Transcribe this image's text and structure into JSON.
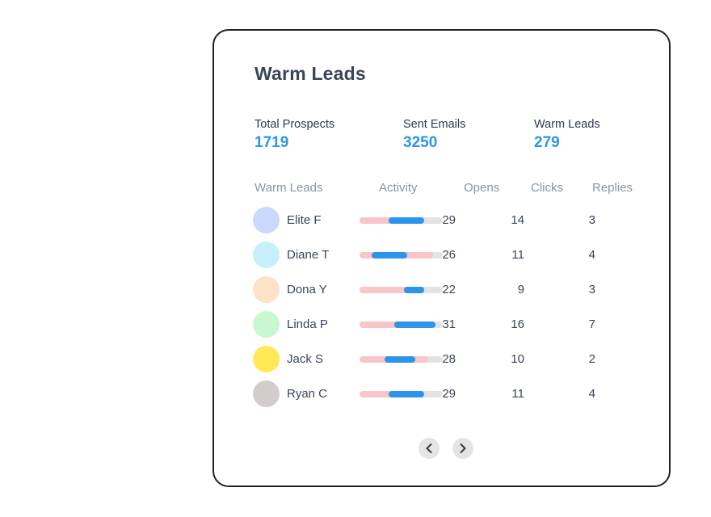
{
  "title": "Warm Leads",
  "stats": [
    {
      "label": "Total Prospects",
      "value": "1719"
    },
    {
      "label": "Sent Emails",
      "value": "3250"
    },
    {
      "label": "Warm Leads",
      "value": "279"
    }
  ],
  "table": {
    "headers": [
      "Warm Leads",
      "Activity",
      "Opens",
      "Clicks",
      "Replies"
    ],
    "rows": [
      {
        "name": "Elite F",
        "avatar_color": "#c9d8fb",
        "activity_pink": 0.75,
        "activity_blue": [
          0.35,
          0.78
        ],
        "opens": "29",
        "clicks": "14",
        "replies": "3"
      },
      {
        "name": "Diane T",
        "avatar_color": "#c8f0fb",
        "activity_pink": 0.88,
        "activity_blue": [
          0.15,
          0.57
        ],
        "opens": "26",
        "clicks": "11",
        "replies": "4"
      },
      {
        "name": "Dona Y",
        "avatar_color": "#fde2c8",
        "activity_pink": 0.78,
        "activity_blue": [
          0.53,
          0.78
        ],
        "opens": "22",
        "clicks": "9",
        "replies": "3"
      },
      {
        "name": "Linda P",
        "avatar_color": "#c9f7cf",
        "activity_pink": 0.88,
        "activity_blue": [
          0.42,
          0.91
        ],
        "opens": "31",
        "clicks": "16",
        "replies": "7"
      },
      {
        "name": "Jack S",
        "avatar_color": "#ffea55",
        "activity_pink": 0.83,
        "activity_blue": [
          0.3,
          0.67
        ],
        "opens": "28",
        "clicks": "10",
        "replies": "2"
      },
      {
        "name": "Ryan C",
        "avatar_color": "#d3cccc",
        "activity_pink": 0.75,
        "activity_blue": [
          0.35,
          0.78
        ],
        "opens": "29",
        "clicks": "11",
        "replies": "4"
      }
    ]
  },
  "pager": {
    "prev_icon": "chevron-left-icon",
    "next_icon": "chevron-right-icon"
  }
}
